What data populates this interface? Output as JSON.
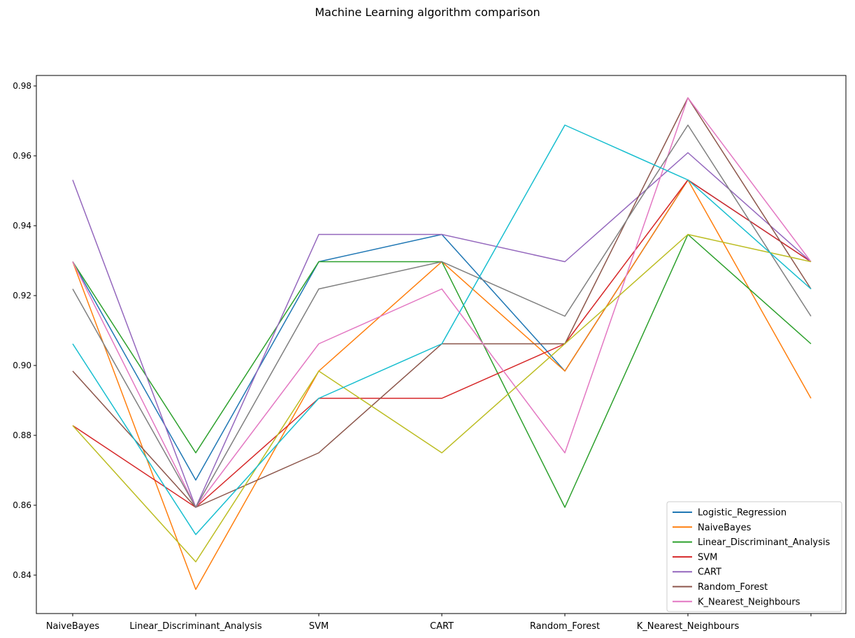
{
  "chart_data": {
    "type": "line",
    "title": "Machine Learning algorithm comparison",
    "xlabel": "",
    "ylabel": "",
    "categories": [
      "NaiveBayes",
      "Linear_Discriminant_Analysis",
      "SVM",
      "CART",
      "Random_Forest",
      "K_Nearest_Neighbours",
      ""
    ],
    "ylim": [
      0.829,
      0.983
    ],
    "yticks": [
      "0.84",
      "0.86",
      "0.88",
      "0.90",
      "0.92",
      "0.94",
      "0.96",
      "0.98"
    ],
    "grid": false,
    "legend_position": "lower right",
    "series": [
      {
        "name": "Logistic_Regression",
        "color": "#1f77b4",
        "values": [
          0.9297,
          0.8672,
          0.9297,
          0.9375,
          0.8984,
          0.9531,
          0.9297
        ]
      },
      {
        "name": "NaiveBayes",
        "color": "#ff7f0e",
        "values": [
          0.9297,
          0.8359,
          0.8984,
          0.9297,
          0.8984,
          0.9531,
          0.8906
        ]
      },
      {
        "name": "Linear_Discriminant_Analysis",
        "color": "#2ca02c",
        "values": [
          0.9297,
          0.875,
          0.9297,
          0.9297,
          0.8594,
          0.9375,
          0.9062
        ]
      },
      {
        "name": "SVM",
        "color": "#d62728",
        "values": [
          0.8828,
          0.8594,
          0.8906,
          0.8906,
          0.9062,
          0.9531,
          0.9297
        ]
      },
      {
        "name": "CART",
        "color": "#9467bd",
        "values": [
          0.9531,
          0.8594,
          0.9375,
          0.9375,
          0.9297,
          0.9609,
          0.9297
        ]
      },
      {
        "name": "Random_Forest",
        "color": "#8c564b",
        "values": [
          0.8984,
          0.8594,
          0.875,
          0.9062,
          0.9062,
          0.9766,
          0.9219
        ]
      },
      {
        "name": "K_Nearest_Neighbours",
        "color": "#e377c2",
        "values": [
          0.9297,
          0.8594,
          0.9062,
          0.9219,
          0.875,
          0.9766,
          0.9297
        ]
      },
      {
        "color": "#7f7f7f",
        "values": [
          0.9219,
          0.8594,
          0.9219,
          0.9297,
          0.9141,
          0.9688,
          0.9141
        ]
      },
      {
        "color": "#bcbd22",
        "values": [
          0.8828,
          0.8438,
          0.8984,
          0.875,
          0.9062,
          0.9375,
          0.9297
        ]
      },
      {
        "color": "#17becf",
        "values": [
          0.9062,
          0.8516,
          0.8906,
          0.9062,
          0.9688,
          0.9531,
          0.9219
        ]
      }
    ]
  }
}
